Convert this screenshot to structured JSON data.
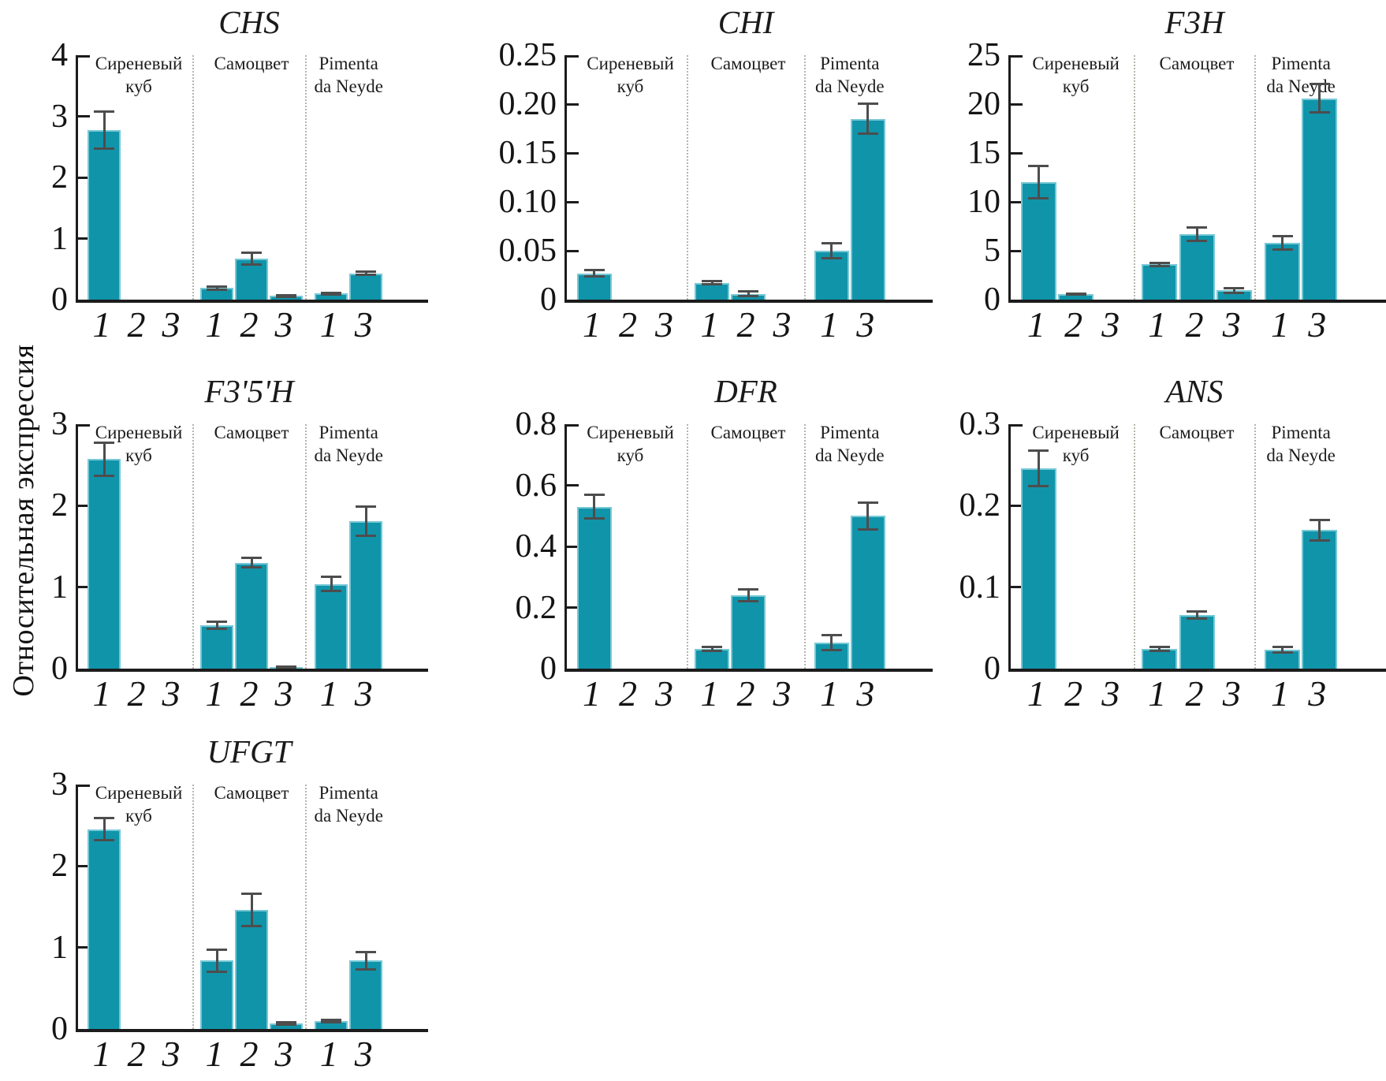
{
  "figure": {
    "y_axis_label": "Относительная экспрессия",
    "bar_color": "#1094aa",
    "bar_edge_color": "#76c8d6",
    "error_bar_color": "#4d4d4d",
    "axis_color": "#1c1c1c",
    "divider_color": "#b5b5ac",
    "cultivar_names": [
      "Сиреневый куб",
      "Самоцвет",
      "Pimenta da Neyde"
    ]
  },
  "chart_data": [
    {
      "type": "bar",
      "title": "CHS",
      "ylim": [
        0,
        4
      ],
      "yticks": [
        "0",
        "1",
        "2",
        "3",
        "4"
      ],
      "grid": false,
      "groups": [
        {
          "label_lines": [
            "Сиреневый",
            "куб"
          ],
          "bars": [
            {
              "tick": "1",
              "value": 2.78,
              "error": 0.31
            },
            {
              "tick": "2",
              "value": 0,
              "error": 0
            },
            {
              "tick": "3",
              "value": 0,
              "error": 0
            }
          ]
        },
        {
          "label_lines": [
            "Самоцвет"
          ],
          "bars": [
            {
              "tick": "1",
              "value": 0.19,
              "error": 0.03
            },
            {
              "tick": "2",
              "value": 0.67,
              "error": 0.1
            },
            {
              "tick": "3",
              "value": 0.06,
              "error": 0.02
            }
          ]
        },
        {
          "label_lines": [
            "Pimenta",
            "da Neyde"
          ],
          "bars": [
            {
              "tick": "1",
              "value": 0.1,
              "error": 0.02
            },
            {
              "tick": "3",
              "value": 0.43,
              "error": 0.03
            }
          ]
        }
      ]
    },
    {
      "type": "bar",
      "title": "CHI",
      "ylim": [
        0,
        0.25
      ],
      "yticks": [
        "0",
        "0.05",
        "0.10",
        "0.15",
        "0.20",
        "0.25"
      ],
      "grid": false,
      "groups": [
        {
          "label_lines": [
            "Сиреневый",
            "куб"
          ],
          "bars": [
            {
              "tick": "1",
              "value": 0.027,
              "error": 0.004
            },
            {
              "tick": "2",
              "value": 0,
              "error": 0
            },
            {
              "tick": "3",
              "value": 0,
              "error": 0
            }
          ]
        },
        {
          "label_lines": [
            "Самоцвет"
          ],
          "bars": [
            {
              "tick": "1",
              "value": 0.017,
              "error": 0.002
            },
            {
              "tick": "2",
              "value": 0.006,
              "error": 0.003
            },
            {
              "tick": "3",
              "value": 0,
              "error": 0
            }
          ]
        },
        {
          "label_lines": [
            "Pimenta",
            "da Neyde"
          ],
          "bars": [
            {
              "tick": "1",
              "value": 0.05,
              "error": 0.008
            },
            {
              "tick": "3",
              "value": 0.185,
              "error": 0.016
            }
          ]
        }
      ]
    },
    {
      "type": "bar",
      "title": "F3H",
      "ylim": [
        0,
        25
      ],
      "yticks": [
        "0",
        "5",
        "10",
        "15",
        "20",
        "25"
      ],
      "grid": false,
      "groups": [
        {
          "label_lines": [
            "Сиреневый",
            "куб"
          ],
          "bars": [
            {
              "tick": "1",
              "value": 12.0,
              "error": 1.7
            },
            {
              "tick": "2",
              "value": 0.55,
              "error": 0.1
            },
            {
              "tick": "3",
              "value": 0,
              "error": 0
            }
          ]
        },
        {
          "label_lines": [
            "Самоцвет"
          ],
          "bars": [
            {
              "tick": "1",
              "value": 3.6,
              "error": 0.2
            },
            {
              "tick": "2",
              "value": 6.7,
              "error": 0.7
            },
            {
              "tick": "3",
              "value": 0.95,
              "error": 0.3
            }
          ]
        },
        {
          "label_lines": [
            "Pimenta",
            "da Neyde"
          ],
          "bars": [
            {
              "tick": "1",
              "value": 5.8,
              "error": 0.7
            },
            {
              "tick": "3",
              "value": 20.6,
              "error": 1.5
            }
          ]
        }
      ]
    },
    {
      "type": "bar",
      "title": "F3'5'H",
      "ylim": [
        0,
        3
      ],
      "yticks": [
        "0",
        "1",
        "2",
        "3"
      ],
      "grid": false,
      "groups": [
        {
          "label_lines": [
            "Сиреневый",
            "куб"
          ],
          "bars": [
            {
              "tick": "1",
              "value": 2.57,
              "error": 0.21
            },
            {
              "tick": "2",
              "value": 0,
              "error": 0
            },
            {
              "tick": "3",
              "value": 0,
              "error": 0
            }
          ]
        },
        {
          "label_lines": [
            "Самоцвет"
          ],
          "bars": [
            {
              "tick": "1",
              "value": 0.53,
              "error": 0.05
            },
            {
              "tick": "2",
              "value": 1.3,
              "error": 0.06
            },
            {
              "tick": "3",
              "value": 0.02,
              "error": 0.01
            }
          ]
        },
        {
          "label_lines": [
            "Pimenta",
            "da Neyde"
          ],
          "bars": [
            {
              "tick": "1",
              "value": 1.04,
              "error": 0.09
            },
            {
              "tick": "3",
              "value": 1.81,
              "error": 0.18
            }
          ]
        }
      ]
    },
    {
      "type": "bar",
      "title": "DFR",
      "ylim": [
        0,
        0.8
      ],
      "yticks": [
        "0",
        "0.2",
        "0.4",
        "0.6",
        "0.8"
      ],
      "grid": false,
      "groups": [
        {
          "label_lines": [
            "Сиреневый",
            "куб"
          ],
          "bars": [
            {
              "tick": "1",
              "value": 0.53,
              "error": 0.04
            },
            {
              "tick": "2",
              "value": 0,
              "error": 0
            },
            {
              "tick": "3",
              "value": 0,
              "error": 0
            }
          ]
        },
        {
          "label_lines": [
            "Самоцвет"
          ],
          "bars": [
            {
              "tick": "1",
              "value": 0.065,
              "error": 0.008
            },
            {
              "tick": "2",
              "value": 0.24,
              "error": 0.02
            },
            {
              "tick": "3",
              "value": 0,
              "error": 0
            }
          ]
        },
        {
          "label_lines": [
            "Pimenta",
            "da Neyde"
          ],
          "bars": [
            {
              "tick": "1",
              "value": 0.085,
              "error": 0.026
            },
            {
              "tick": "3",
              "value": 0.5,
              "error": 0.045
            }
          ]
        }
      ]
    },
    {
      "type": "bar",
      "title": "ANS",
      "ylim": [
        0,
        0.3
      ],
      "yticks": [
        "0",
        "0.1",
        "0.2",
        "0.3"
      ],
      "grid": false,
      "groups": [
        {
          "label_lines": [
            "Сиреневый",
            "куб"
          ],
          "bars": [
            {
              "tick": "1",
              "value": 0.246,
              "error": 0.022
            },
            {
              "tick": "2",
              "value": 0,
              "error": 0
            },
            {
              "tick": "3",
              "value": 0,
              "error": 0
            }
          ]
        },
        {
          "label_lines": [
            "Самоцвет"
          ],
          "bars": [
            {
              "tick": "1",
              "value": 0.024,
              "error": 0.003
            },
            {
              "tick": "2",
              "value": 0.066,
              "error": 0.005
            },
            {
              "tick": "3",
              "value": 0,
              "error": 0
            }
          ]
        },
        {
          "label_lines": [
            "Pimenta",
            "da Neyde"
          ],
          "bars": [
            {
              "tick": "1",
              "value": 0.023,
              "error": 0.004
            },
            {
              "tick": "3",
              "value": 0.17,
              "error": 0.013
            }
          ]
        }
      ]
    },
    {
      "type": "bar",
      "title": "UFGT",
      "ylim": [
        0,
        3
      ],
      "yticks": [
        "0",
        "1",
        "2",
        "3"
      ],
      "grid": false,
      "groups": [
        {
          "label_lines": [
            "Сиреневый",
            "куб"
          ],
          "bars": [
            {
              "tick": "1",
              "value": 2.45,
              "error": 0.14
            },
            {
              "tick": "2",
              "value": 0,
              "error": 0
            },
            {
              "tick": "3",
              "value": 0,
              "error": 0
            }
          ]
        },
        {
          "label_lines": [
            "Самоцвет"
          ],
          "bars": [
            {
              "tick": "1",
              "value": 0.84,
              "error": 0.14
            },
            {
              "tick": "2",
              "value": 1.46,
              "error": 0.2
            },
            {
              "tick": "3",
              "value": 0.07,
              "error": 0.02
            }
          ]
        },
        {
          "label_lines": [
            "Pimenta",
            "da Neyde"
          ],
          "bars": [
            {
              "tick": "1",
              "value": 0.1,
              "error": 0.02
            },
            {
              "tick": "3",
              "value": 0.84,
              "error": 0.11
            }
          ]
        }
      ]
    }
  ]
}
